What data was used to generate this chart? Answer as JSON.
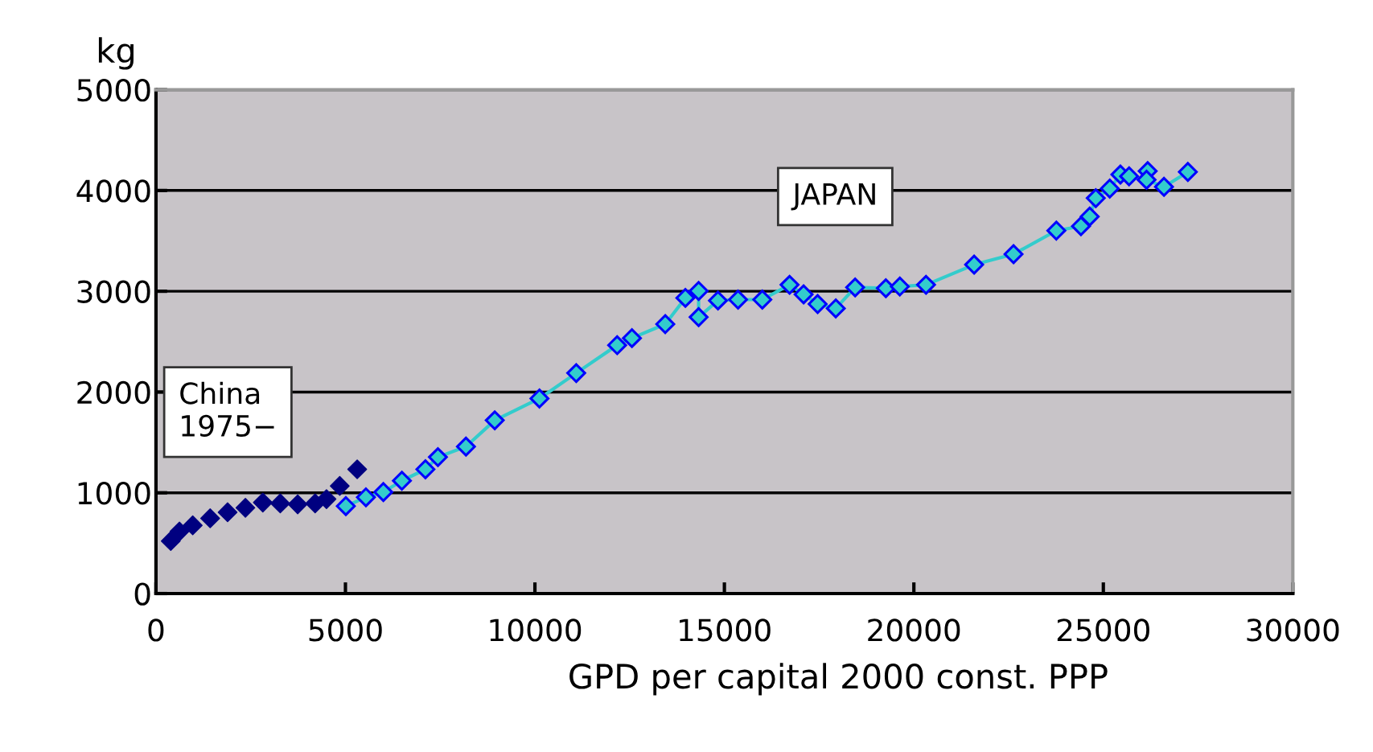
{
  "chart_data": {
    "type": "line",
    "xlabel": "GPD per capital 2000 const. PPP",
    "ylabel": "kg",
    "xlim": [
      0,
      30000
    ],
    "xticks": [
      0,
      5000,
      10000,
      15000,
      20000,
      25000,
      30000
    ],
    "ylim": [
      0,
      5000
    ],
    "yticks": [
      0,
      1000,
      2000,
      3000,
      4000,
      5000
    ],
    "grid": "y",
    "marker": "diamond",
    "legend": false,
    "series": [
      {
        "name": "China\n1975−",
        "color": "#000080",
        "type": "scatter",
        "x": [
          390,
          620,
          970,
          1430,
          1890,
          2360,
          2820,
          3280,
          3740,
          4200,
          4500,
          4850,
          5310
        ],
        "values": [
          521,
          616,
          677,
          747,
          807,
          851,
          903,
          894,
          885,
          894,
          937,
          1068,
          1233
        ]
      },
      {
        "name": "JAPAN",
        "color": "#33cccc",
        "x": [
          5010,
          5540,
          6000,
          6490,
          7110,
          7440,
          8180,
          8940,
          10120,
          11090,
          12170,
          12560,
          13440,
          13970,
          14320,
          14320,
          14830,
          15360,
          16000,
          16720,
          17090,
          17460,
          17940,
          18450,
          19260,
          19630,
          20320,
          21590,
          22630,
          23760,
          24410,
          24640,
          24800,
          25170,
          25450,
          25680,
          25980,
          26170,
          26140,
          26600,
          27230
        ],
        "values": [
          868,
          955,
          1007,
          1120,
          1233,
          1354,
          1458,
          1719,
          1936,
          2188,
          2465,
          2535,
          2674,
          2934,
          3003,
          2743,
          2908,
          2917,
          2917,
          3064,
          2969,
          2873,
          2830,
          3038,
          3030,
          3047,
          3064,
          3264,
          3368,
          3602,
          3646,
          3741,
          3924,
          4019,
          4158,
          4141,
          null,
          4193,
          4106,
          4036,
          4184
        ]
      }
    ]
  }
}
